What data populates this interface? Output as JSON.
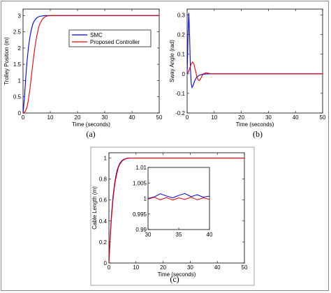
{
  "colors": {
    "smc": "#0000ee",
    "proposed": "#ee0000",
    "axes": "#000000",
    "frame": "#8a8a8a"
  },
  "legend": {
    "items": [
      "SMC",
      "Proposed Controller"
    ]
  },
  "chart_data": [
    {
      "type": "line",
      "caption": "(a)",
      "xlabel": "Time (seconds)",
      "ylabel": "Trolley Position (m)",
      "xlim": [
        0,
        50
      ],
      "ylim": [
        0,
        3.2
      ],
      "xticks": [
        0,
        10,
        20,
        30,
        40,
        50
      ],
      "yticks": [
        0,
        0.5,
        1,
        1.5,
        2,
        2.5,
        3
      ],
      "xtick_labels": [
        "0",
        "10",
        "20",
        "30",
        "40",
        "50"
      ],
      "ytick_labels": [
        "0",
        "0.5",
        "1",
        "1.5",
        "2",
        "2.5",
        "3"
      ],
      "legend_position": "center-right",
      "series": [
        {
          "name": "SMC",
          "color": "#0000ee",
          "points": [
            [
              0,
              0
            ],
            [
              0.5,
              0.45
            ],
            [
              1,
              1.1
            ],
            [
              1.5,
              1.62
            ],
            [
              2,
              2.03
            ],
            [
              2.5,
              2.33
            ],
            [
              3,
              2.55
            ],
            [
              3.5,
              2.71
            ],
            [
              4,
              2.82
            ],
            [
              5,
              2.93
            ],
            [
              6,
              2.975
            ],
            [
              7,
              2.99
            ],
            [
              8,
              3
            ],
            [
              50,
              3
            ]
          ]
        },
        {
          "name": "Proposed Controller",
          "color": "#ee0000",
          "points": [
            [
              0,
              0
            ],
            [
              0.5,
              0.02
            ],
            [
              1,
              0.08
            ],
            [
              1.5,
              0.2
            ],
            [
              2,
              0.42
            ],
            [
              2.5,
              0.72
            ],
            [
              3,
              1.08
            ],
            [
              3.5,
              1.45
            ],
            [
              4,
              1.8
            ],
            [
              4.5,
              2.1
            ],
            [
              5,
              2.35
            ],
            [
              5.5,
              2.55
            ],
            [
              6,
              2.71
            ],
            [
              7,
              2.88
            ],
            [
              8,
              2.96
            ],
            [
              9,
              2.99
            ],
            [
              10,
              3
            ],
            [
              50,
              3
            ]
          ]
        }
      ]
    },
    {
      "type": "line",
      "caption": "(b)",
      "xlabel": "Time (seconds)",
      "ylabel": "Sway Angle (rad)",
      "xlim": [
        0,
        50
      ],
      "ylim": [
        -0.2,
        0.33
      ],
      "xticks": [
        0,
        10,
        20,
        30,
        40,
        50
      ],
      "yticks": [
        -0.2,
        -0.1,
        0,
        0.1,
        0.2,
        0.3
      ],
      "xtick_labels": [
        "0",
        "10",
        "20",
        "30",
        "40",
        "50"
      ],
      "ytick_labels": [
        "-0.2",
        "-0.1",
        "0",
        "0.1",
        "0.2",
        "0.3"
      ],
      "series": [
        {
          "name": "SMC",
          "color": "#0000ee",
          "points": [
            [
              0,
              0
            ],
            [
              0.3,
              0.18
            ],
            [
              0.6,
              0.31
            ],
            [
              0.9,
              0.2
            ],
            [
              1.2,
              0.03
            ],
            [
              1.5,
              -0.05
            ],
            [
              1.8,
              -0.07
            ],
            [
              2.2,
              -0.06
            ],
            [
              2.8,
              -0.035
            ],
            [
              3.5,
              -0.018
            ],
            [
              4.5,
              -0.007
            ],
            [
              6,
              -0.002
            ],
            [
              8,
              0
            ],
            [
              50,
              0
            ]
          ]
        },
        {
          "name": "Proposed Controller",
          "color": "#ee0000",
          "points": [
            [
              0,
              0
            ],
            [
              0.5,
              0.01
            ],
            [
              1,
              0.03
            ],
            [
              1.5,
              0.05
            ],
            [
              2,
              0.06
            ],
            [
              2.5,
              0.05
            ],
            [
              3,
              0.02
            ],
            [
              3.5,
              -0.01
            ],
            [
              4,
              -0.03
            ],
            [
              4.5,
              -0.035
            ],
            [
              5,
              -0.025
            ],
            [
              5.5,
              -0.01
            ],
            [
              6,
              0
            ],
            [
              7,
              0.005
            ],
            [
              8,
              0.002
            ],
            [
              9,
              0
            ],
            [
              50,
              0
            ]
          ]
        }
      ]
    },
    {
      "type": "line",
      "caption": "(c)",
      "xlabel": "Time (seconds)",
      "ylabel": "Cable Length (m)",
      "xlim": [
        0,
        50
      ],
      "ylim": [
        0,
        1.05
      ],
      "xticks": [
        0,
        10,
        20,
        30,
        40,
        50
      ],
      "yticks": [
        0,
        0.2,
        0.4,
        0.6,
        0.8,
        1
      ],
      "xtick_labels": [
        "0",
        "10",
        "20",
        "30",
        "40",
        "50"
      ],
      "ytick_labels": [
        "0",
        "0.2",
        "0.4",
        "0.6",
        "0.8",
        "1"
      ],
      "series": [
        {
          "name": "SMC",
          "color": "#0000ee",
          "points": [
            [
              0,
              0
            ],
            [
              0.5,
              0.28
            ],
            [
              1,
              0.48
            ],
            [
              1.5,
              0.63
            ],
            [
              2,
              0.74
            ],
            [
              2.5,
              0.82
            ],
            [
              3,
              0.88
            ],
            [
              3.5,
              0.92
            ],
            [
              4,
              0.95
            ],
            [
              5,
              0.98
            ],
            [
              6,
              0.993
            ],
            [
              7,
              1
            ],
            [
              50,
              1
            ]
          ]
        },
        {
          "name": "Proposed Controller",
          "color": "#ee0000",
          "points": [
            [
              0,
              0
            ],
            [
              0.5,
              0.25
            ],
            [
              1,
              0.45
            ],
            [
              1.5,
              0.6
            ],
            [
              2,
              0.72
            ],
            [
              2.5,
              0.8
            ],
            [
              3,
              0.86
            ],
            [
              3.5,
              0.91
            ],
            [
              4,
              0.94
            ],
            [
              5,
              0.975
            ],
            [
              6,
              0.99
            ],
            [
              7,
              0.998
            ],
            [
              8,
              1
            ],
            [
              50,
              1
            ]
          ]
        }
      ],
      "inset": {
        "xlim": [
          30,
          40
        ],
        "ylim": [
          0.99,
          1.01
        ],
        "xticks": [
          30,
          35,
          40
        ],
        "yticks": [
          0.99,
          0.995,
          1,
          1.005,
          1.01
        ],
        "xtick_labels": [
          "30",
          "35",
          "40"
        ],
        "ytick_labels": [
          "0.99",
          "0.995",
          "1",
          "1.005",
          "1.01"
        ],
        "series": [
          {
            "name": "SMC",
            "color": "#0000ee",
            "points": [
              [
                30,
                1
              ],
              [
                31,
                1.0005
              ],
              [
                32,
                1.0015
              ],
              [
                33,
                1.0008
              ],
              [
                34,
                1.0002
              ],
              [
                35,
                1.001
              ],
              [
                36,
                1.0016
              ],
              [
                37,
                1.0006
              ],
              [
                38,
                1.0012
              ],
              [
                39,
                1.0004
              ],
              [
                40,
                1.0008
              ]
            ]
          },
          {
            "name": "Proposed Controller",
            "color": "#ee0000",
            "points": [
              [
                30,
                0.9998
              ],
              [
                31,
                1.0004
              ],
              [
                32,
                0.9996
              ],
              [
                33,
                1.0003
              ],
              [
                34,
                0.9995
              ],
              [
                35,
                1.0002
              ],
              [
                36,
                0.9997
              ],
              [
                37,
                1.0004
              ],
              [
                38,
                0.9996
              ],
              [
                39,
                1.0002
              ],
              [
                40,
                0.9997
              ]
            ]
          }
        ]
      }
    }
  ]
}
